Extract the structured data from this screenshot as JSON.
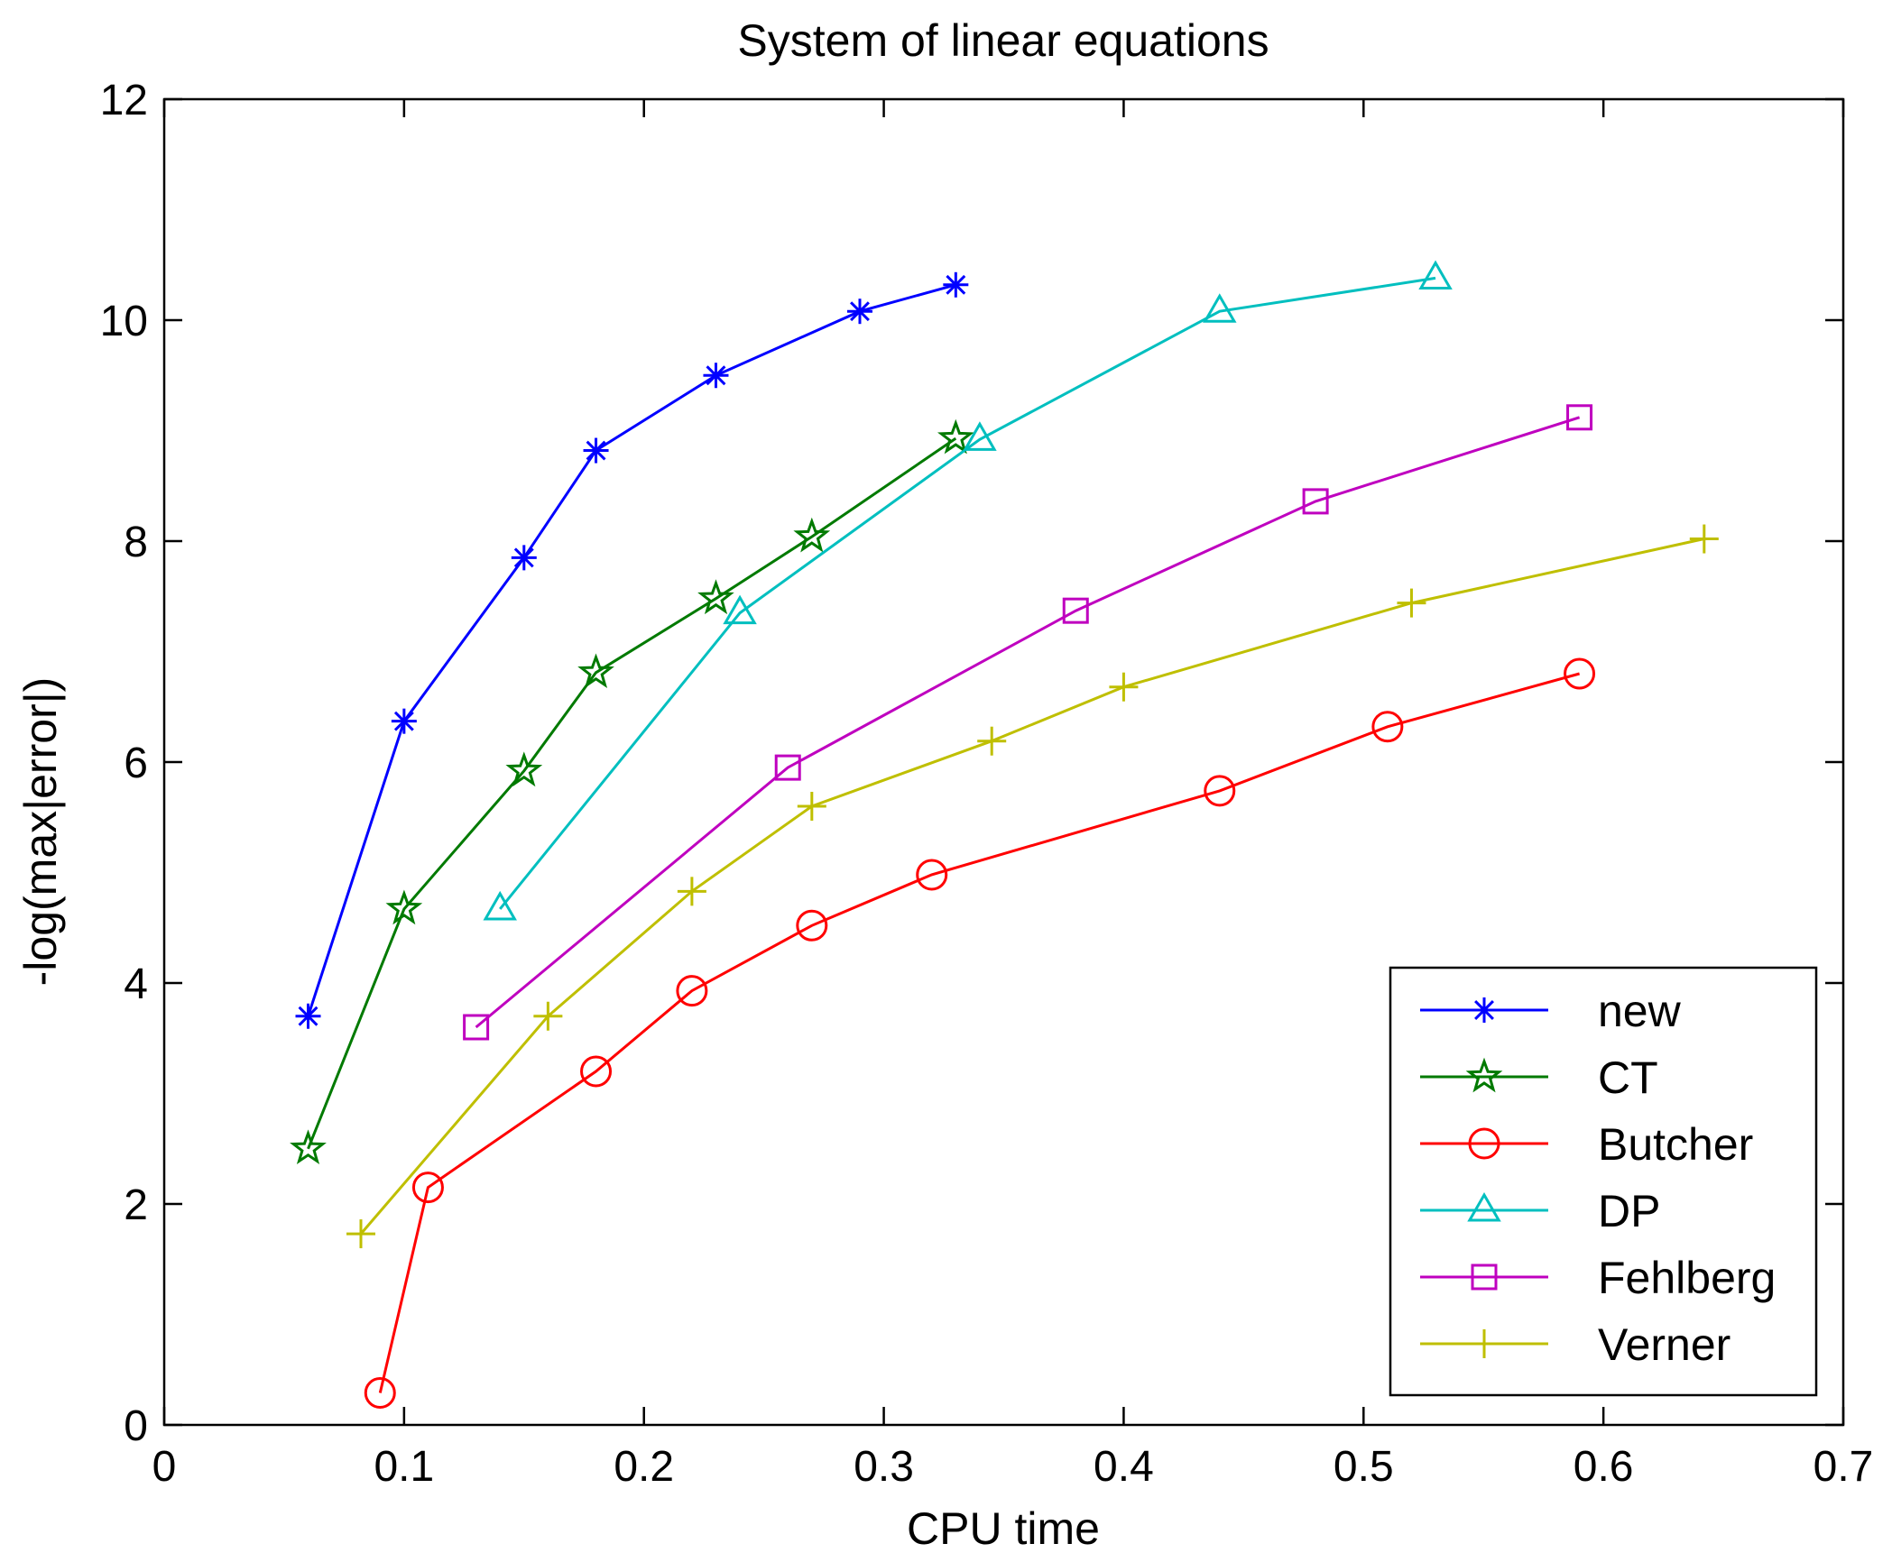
{
  "chart_data": {
    "type": "line",
    "title": "System of linear equations",
    "xlabel": "CPU time",
    "ylabel": "-log(max|error|)",
    "xlim": [
      0,
      0.7
    ],
    "ylim": [
      0,
      12
    ],
    "xticks": [
      0,
      0.1,
      0.2,
      0.3,
      0.4,
      0.5,
      0.6,
      0.7
    ],
    "yticks": [
      0,
      2,
      4,
      6,
      8,
      10,
      12
    ],
    "xtick_labels": [
      "0",
      "0.1",
      "0.2",
      "0.3",
      "0.4",
      "0.5",
      "0.6",
      "0.7"
    ],
    "ytick_labels": [
      "0",
      "2",
      "4",
      "6",
      "8",
      "10",
      "12"
    ],
    "grid": false,
    "legend_position": "bottom-right",
    "series": [
      {
        "name": "new",
        "color": "#0000ff",
        "marker": "asterisk",
        "x": [
          0.06,
          0.1,
          0.15,
          0.18,
          0.23,
          0.29,
          0.33
        ],
        "y": [
          3.7,
          6.37,
          7.85,
          8.82,
          9.5,
          10.08,
          10.32
        ]
      },
      {
        "name": "CT",
        "color": "#007a00",
        "marker": "star",
        "x": [
          0.06,
          0.1,
          0.15,
          0.18,
          0.23,
          0.27,
          0.33
        ],
        "y": [
          2.5,
          4.67,
          5.92,
          6.81,
          7.48,
          8.04,
          8.93
        ]
      },
      {
        "name": "Butcher",
        "color": "#ff0000",
        "marker": "circle",
        "x": [
          0.09,
          0.11,
          0.18,
          0.22,
          0.27,
          0.32,
          0.44,
          0.51,
          0.59
        ],
        "y": [
          0.29,
          2.15,
          3.2,
          3.93,
          4.52,
          4.98,
          5.74,
          6.32,
          6.8
        ]
      },
      {
        "name": "DP",
        "color": "#00bfbf",
        "marker": "triangle",
        "x": [
          0.14,
          0.24,
          0.34,
          0.44,
          0.53
        ],
        "y": [
          4.67,
          7.35,
          8.92,
          10.08,
          10.38
        ]
      },
      {
        "name": "Fehlberg",
        "color": "#bf00bf",
        "marker": "square",
        "x": [
          0.13,
          0.26,
          0.38,
          0.48,
          0.59
        ],
        "y": [
          3.6,
          5.95,
          7.37,
          8.36,
          9.12
        ]
      },
      {
        "name": "Verner",
        "color": "#bfbf00",
        "marker": "plus",
        "x": [
          0.082,
          0.16,
          0.22,
          0.27,
          0.345,
          0.4,
          0.52,
          0.642
        ],
        "y": [
          1.73,
          3.7,
          4.83,
          5.6,
          6.19,
          6.68,
          7.44,
          8.02
        ]
      }
    ]
  }
}
